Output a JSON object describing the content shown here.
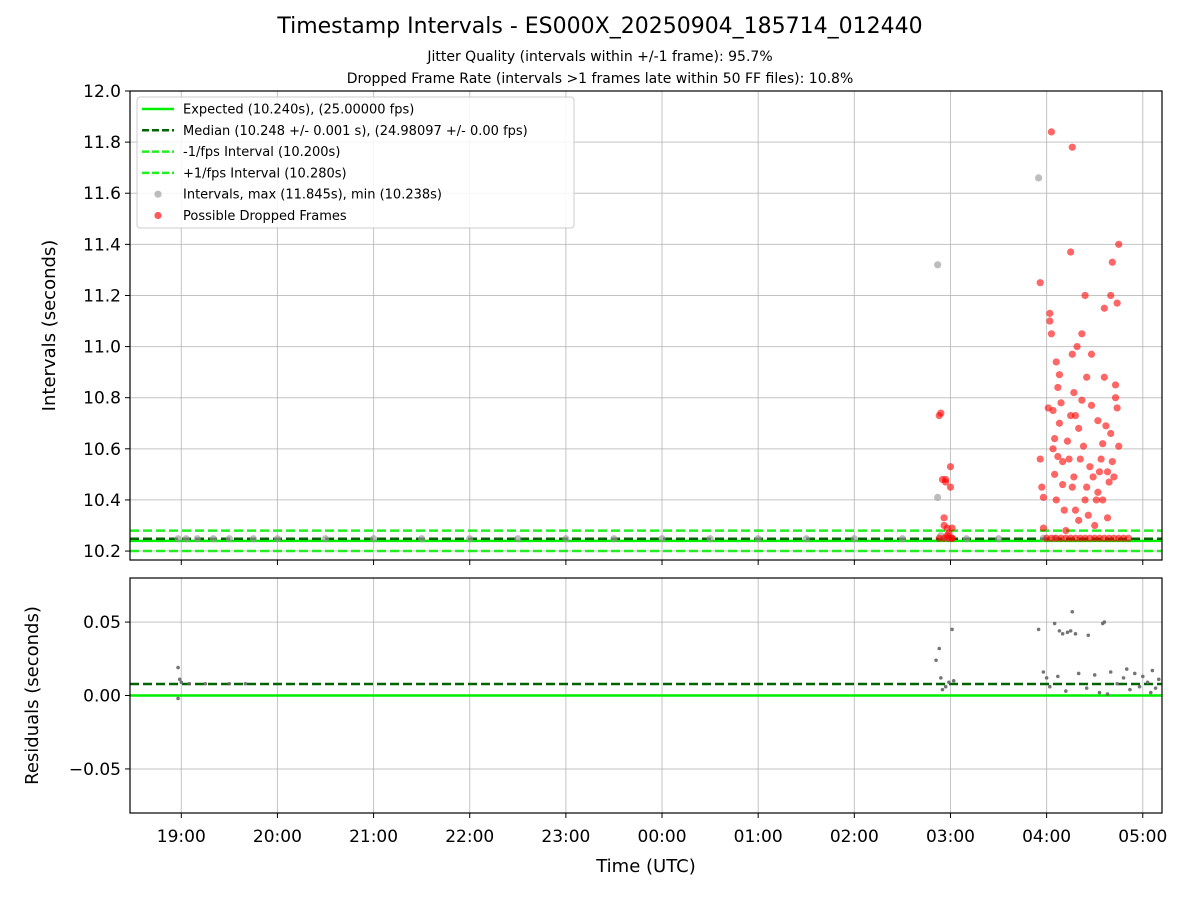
{
  "figure": {
    "title": "Timestamp Intervals - ES000X_20250904_185714_012440",
    "subtitle_1": "Jitter Quality (intervals within +/-1 frame): 95.7%",
    "subtitle_2": "Dropped Frame Rate (intervals >1 frames late within 50 FF files): 10.8%"
  },
  "colors": {
    "expected": "#00ee00",
    "median": "#006400",
    "bounds": "#22ee22",
    "intervals": "#999999",
    "dropped": "#ff0000",
    "residuals": "#666666",
    "grid": "#b0b0b0"
  },
  "chart_data": [
    {
      "type": "scatter",
      "title": "",
      "xlabel": "",
      "ylabel": "Intervals (seconds)",
      "xlim": [
        "18:28",
        "05:12"
      ],
      "ylim": [
        10.165,
        12.0
      ],
      "x_ticks": [
        "19:00",
        "20:00",
        "21:00",
        "22:00",
        "23:00",
        "00:00",
        "01:00",
        "02:00",
        "03:00",
        "04:00",
        "05:00"
      ],
      "y_ticks": [
        "10.2",
        "10.4",
        "10.6",
        "10.8",
        "11.0",
        "11.2",
        "11.4",
        "11.6",
        "11.8",
        "12.0"
      ],
      "grid": true,
      "legend_position": "top-left",
      "reference_lines": [
        {
          "name": "Expected (10.240s), (25.00000 fps)",
          "y": 10.24,
          "style": "solid"
        },
        {
          "name": "Median (10.248 +/- 0.001 s), (24.98097 +/- 0.00 fps)",
          "y": 10.248,
          "style": "dashed"
        },
        {
          "name": "-1/fps Interval (10.200s)",
          "y": 10.2,
          "style": "dashed"
        },
        {
          "name": "+1/fps Interval (10.280s)",
          "y": 10.28,
          "style": "dashed"
        }
      ],
      "series": [
        {
          "name": "Intervals, max (11.845s), min (10.238s)",
          "points": [
            [
              "18:58",
              10.248
            ],
            [
              "19:03",
              10.248
            ],
            [
              "19:10",
              10.248
            ],
            [
              "19:20",
              10.248
            ],
            [
              "19:30",
              10.248
            ],
            [
              "19:45",
              10.248
            ],
            [
              "20:00",
              10.248
            ],
            [
              "20:30",
              10.248
            ],
            [
              "21:00",
              10.248
            ],
            [
              "21:30",
              10.248
            ],
            [
              "22:00",
              10.248
            ],
            [
              "22:30",
              10.248
            ],
            [
              "23:00",
              10.248
            ],
            [
              "23:30",
              10.248
            ],
            [
              "00:00",
              10.248
            ],
            [
              "00:30",
              10.248
            ],
            [
              "01:00",
              10.248
            ],
            [
              "01:30",
              10.248
            ],
            [
              "02:00",
              10.248
            ],
            [
              "02:30",
              10.248
            ],
            [
              "02:52",
              11.32
            ],
            [
              "02:52",
              10.41
            ],
            [
              "02:54",
              10.26
            ],
            [
              "02:57",
              10.25
            ],
            [
              "03:00",
              10.25
            ],
            [
              "03:10",
              10.248
            ],
            [
              "03:30",
              10.248
            ],
            [
              "03:55",
              11.66
            ],
            [
              "03:58",
              10.25
            ],
            [
              "04:05",
              10.25
            ]
          ]
        },
        {
          "name": "Possible Dropped Frames",
          "points": [
            [
              "02:53",
              10.73
            ],
            [
              "02:54",
              10.74
            ],
            [
              "02:55",
              10.48
            ],
            [
              "02:56",
              10.33
            ],
            [
              "02:56",
              10.3
            ],
            [
              "02:57",
              10.47
            ],
            [
              "02:57",
              10.48
            ],
            [
              "02:58",
              10.29
            ],
            [
              "02:58",
              10.26
            ],
            [
              "02:59",
              10.27
            ],
            [
              "03:00",
              10.45
            ],
            [
              "03:00",
              10.53
            ],
            [
              "03:01",
              10.29
            ],
            [
              "03:01",
              10.25
            ],
            [
              "03:56",
              11.25
            ],
            [
              "03:56",
              10.56
            ],
            [
              "03:57",
              10.45
            ],
            [
              "03:58",
              10.41
            ],
            [
              "03:58",
              10.29
            ],
            [
              "04:01",
              10.76
            ],
            [
              "04:02",
              11.13
            ],
            [
              "04:02",
              11.1
            ],
            [
              "04:03",
              11.05
            ],
            [
              "04:04",
              10.75
            ],
            [
              "04:04",
              10.6
            ],
            [
              "04:05",
              10.64
            ],
            [
              "04:05",
              10.5
            ],
            [
              "04:06",
              10.94
            ],
            [
              "04:06",
              10.4
            ],
            [
              "04:07",
              10.57
            ],
            [
              "04:07",
              10.84
            ],
            [
              "04:08",
              10.89
            ],
            [
              "04:08",
              10.7
            ],
            [
              "04:09",
              10.78
            ],
            [
              "04:10",
              10.46
            ],
            [
              "04:10",
              10.55
            ],
            [
              "04:11",
              10.36
            ],
            [
              "04:12",
              10.28
            ],
            [
              "04:13",
              10.63
            ],
            [
              "04:14",
              10.56
            ],
            [
              "04:15",
              10.73
            ],
            [
              "04:15",
              11.37
            ],
            [
              "04:16",
              10.97
            ],
            [
              "04:16",
              10.45
            ],
            [
              "04:17",
              10.82
            ],
            [
              "04:17",
              10.49
            ],
            [
              "04:18",
              10.73
            ],
            [
              "04:18",
              10.36
            ],
            [
              "04:19",
              11.0
            ],
            [
              "04:20",
              10.68
            ],
            [
              "04:20",
              10.32
            ],
            [
              "04:21",
              10.56
            ],
            [
              "04:22",
              10.79
            ],
            [
              "04:22",
              11.05
            ],
            [
              "04:23",
              10.61
            ],
            [
              "04:24",
              11.2
            ],
            [
              "04:24",
              10.4
            ],
            [
              "04:25",
              10.88
            ],
            [
              "04:25",
              10.45
            ],
            [
              "04:26",
              10.34
            ],
            [
              "04:27",
              10.53
            ],
            [
              "04:28",
              10.97
            ],
            [
              "04:28",
              10.77
            ],
            [
              "04:29",
              10.49
            ],
            [
              "04:30",
              10.3
            ],
            [
              "04:31",
              10.4
            ],
            [
              "04:32",
              10.71
            ],
            [
              "04:32",
              10.43
            ],
            [
              "04:33",
              10.51
            ],
            [
              "04:34",
              10.56
            ],
            [
              "04:35",
              10.62
            ],
            [
              "04:35",
              10.4
            ],
            [
              "04:36",
              11.15
            ],
            [
              "04:36",
              10.88
            ],
            [
              "04:37",
              10.69
            ],
            [
              "04:38",
              10.51
            ],
            [
              "04:38",
              10.33
            ],
            [
              "04:39",
              10.47
            ],
            [
              "04:40",
              11.2
            ],
            [
              "04:40",
              10.66
            ],
            [
              "04:41",
              11.33
            ],
            [
              "04:41",
              10.55
            ],
            [
              "04:42",
              10.49
            ],
            [
              "04:43",
              10.85
            ],
            [
              "04:43",
              10.8
            ],
            [
              "04:44",
              10.76
            ],
            [
              "04:44",
              11.17
            ],
            [
              "04:45",
              10.61
            ],
            [
              "04:45",
              11.4
            ],
            [
              "04:03",
              11.84
            ],
            [
              "04:16",
              11.78
            ],
            [
              "04:00",
              10.25
            ],
            [
              "04:03",
              10.25
            ],
            [
              "04:06",
              10.25
            ],
            [
              "04:09",
              10.25
            ],
            [
              "04:12",
              10.25
            ],
            [
              "04:15",
              10.25
            ],
            [
              "04:18",
              10.25
            ],
            [
              "04:21",
              10.25
            ],
            [
              "04:24",
              10.25
            ],
            [
              "04:27",
              10.25
            ],
            [
              "04:30",
              10.25
            ],
            [
              "04:33",
              10.25
            ],
            [
              "04:36",
              10.25
            ],
            [
              "04:39",
              10.25
            ],
            [
              "04:42",
              10.25
            ],
            [
              "04:45",
              10.25
            ],
            [
              "04:48",
              10.25
            ],
            [
              "04:51",
              10.25
            ],
            [
              "02:53",
              10.25
            ],
            [
              "02:56",
              10.25
            ],
            [
              "02:59",
              10.25
            ],
            [
              "03:01",
              10.25
            ]
          ]
        }
      ]
    },
    {
      "type": "scatter",
      "title": "",
      "xlabel": "Time (UTC)",
      "ylabel": "Residuals (seconds)",
      "xlim": [
        "18:28",
        "05:12"
      ],
      "ylim": [
        -0.08,
        0.08
      ],
      "x_ticks": [
        "19:00",
        "20:00",
        "21:00",
        "22:00",
        "23:00",
        "00:00",
        "01:00",
        "02:00",
        "03:00",
        "04:00",
        "05:00"
      ],
      "y_ticks": [
        "−0.05",
        "0.00",
        "0.05"
      ],
      "grid": true,
      "reference_lines": [
        {
          "name": "Expected",
          "y": 0.0,
          "style": "solid"
        },
        {
          "name": "Median",
          "y": 0.0078,
          "style": "dashed"
        }
      ],
      "series": [
        {
          "name": "",
          "points": [
            [
              "18:58",
              0.019
            ],
            [
              "18:58",
              -0.002
            ],
            [
              "18:59",
              0.011
            ],
            [
              "19:00",
              0.009
            ],
            [
              "19:05",
              0.008
            ],
            [
              "19:15",
              0.008
            ],
            [
              "19:30",
              0.008
            ],
            [
              "19:40",
              0.008
            ],
            [
              "02:51",
              0.024
            ],
            [
              "02:53",
              0.032
            ],
            [
              "02:54",
              0.012
            ],
            [
              "02:55",
              0.004
            ],
            [
              "02:57",
              0.006
            ],
            [
              "02:59",
              0.009
            ],
            [
              "03:01",
              0.045
            ],
            [
              "03:02",
              0.01
            ],
            [
              "03:55",
              0.045
            ],
            [
              "03:58",
              0.016
            ],
            [
              "04:00",
              0.012
            ],
            [
              "04:02",
              0.006
            ],
            [
              "04:05",
              0.049
            ],
            [
              "04:08",
              0.044
            ],
            [
              "04:10",
              0.042
            ],
            [
              "04:13",
              0.043
            ],
            [
              "04:15",
              0.044
            ],
            [
              "04:18",
              0.042
            ],
            [
              "04:16",
              0.057
            ],
            [
              "04:26",
              0.041
            ],
            [
              "04:35",
              0.049
            ],
            [
              "04:36",
              0.05
            ],
            [
              "04:07",
              0.013
            ],
            [
              "04:12",
              0.003
            ],
            [
              "04:20",
              0.015
            ],
            [
              "04:25",
              0.005
            ],
            [
              "04:30",
              0.014
            ],
            [
              "04:33",
              0.002
            ],
            [
              "04:40",
              0.016
            ],
            [
              "04:44",
              0.008
            ],
            [
              "04:48",
              0.012
            ],
            [
              "04:52",
              0.004
            ],
            [
              "04:55",
              0.015
            ],
            [
              "04:58",
              0.006
            ],
            [
              "05:00",
              0.013
            ],
            [
              "05:03",
              0.009
            ],
            [
              "05:06",
              0.017
            ],
            [
              "05:08",
              0.005
            ],
            [
              "05:10",
              0.011
            ],
            [
              "04:38",
              0.001
            ],
            [
              "04:50",
              0.018
            ],
            [
              "05:05",
              0.002
            ]
          ]
        }
      ]
    }
  ]
}
